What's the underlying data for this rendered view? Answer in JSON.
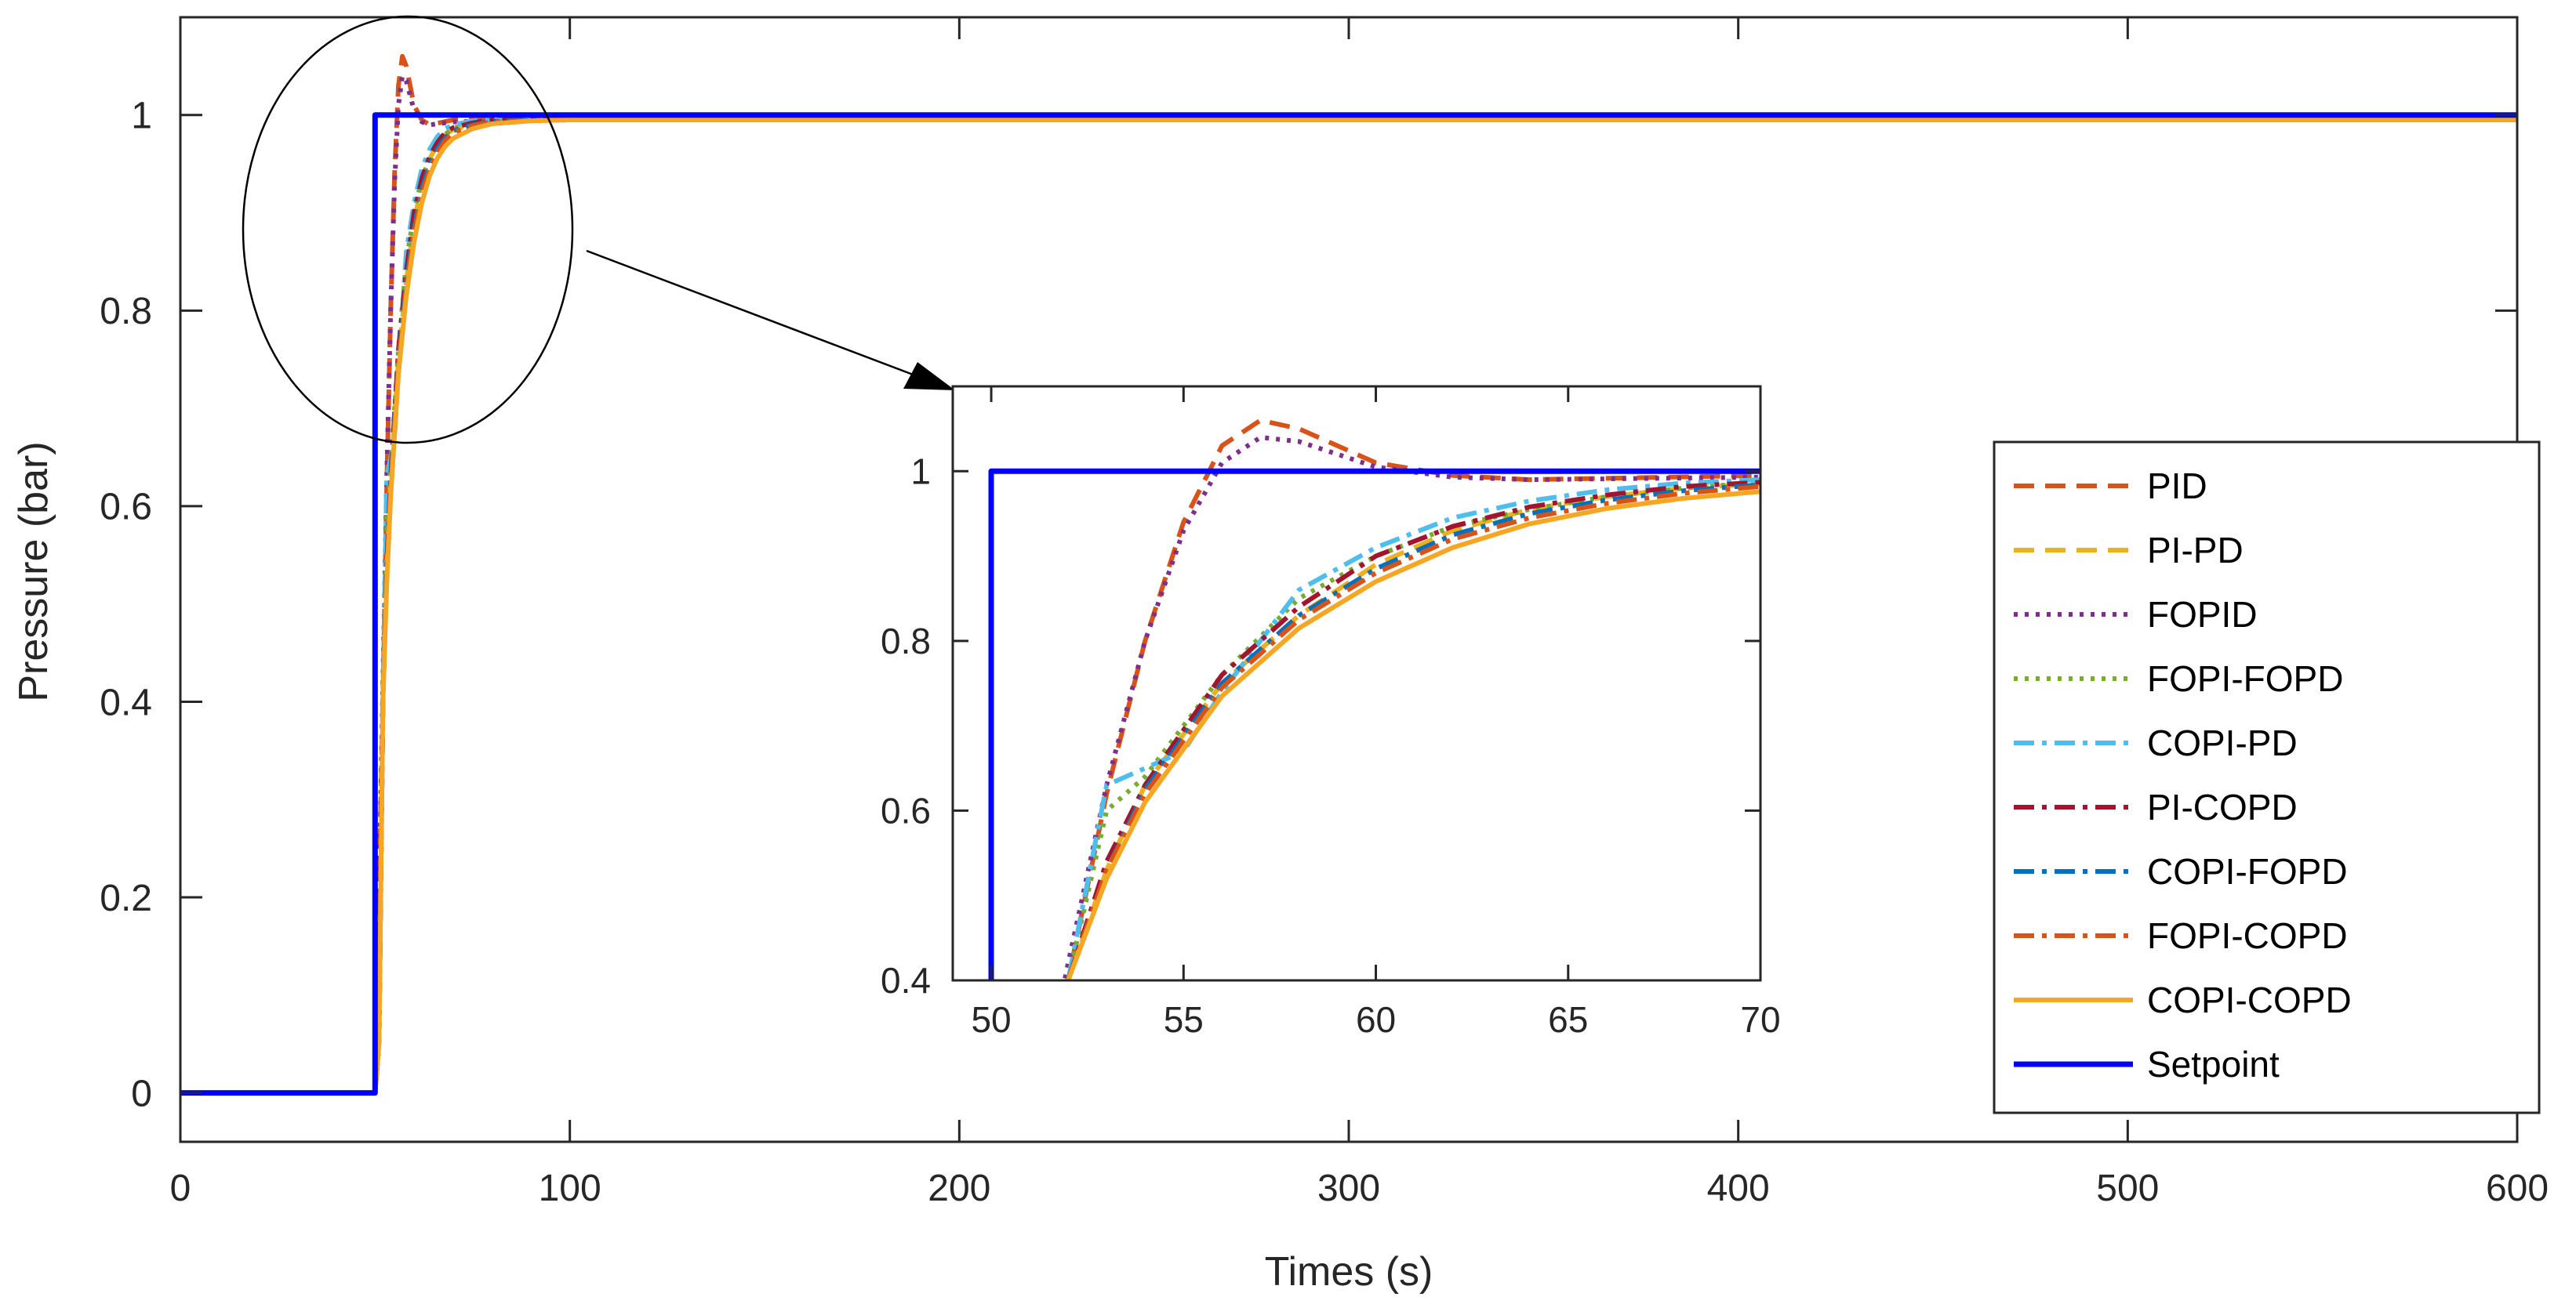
{
  "chart_data": [
    {
      "id": "main",
      "type": "line",
      "title": "",
      "xlabel": "Times (s)",
      "ylabel": "Pressure (bar)",
      "xlim": [
        0,
        600
      ],
      "ylim": [
        -0.05,
        1.1
      ],
      "xticks": [
        0,
        100,
        200,
        300,
        400,
        500,
        600
      ],
      "xtick_labels": [
        "0",
        "100",
        "200",
        "300",
        "400",
        "500",
        "600"
      ],
      "yticks": [
        0,
        0.2,
        0.4,
        0.6,
        0.8,
        1
      ],
      "ytick_labels": [
        "0",
        "0.2",
        "0.4",
        "0.6",
        "0.8",
        "1"
      ],
      "grid": false,
      "legend_position": "lower-right",
      "series": [
        {
          "name": "PID",
          "color": "#D95319",
          "dash": "dashed",
          "x": [
            0,
            50,
            51,
            52,
            53,
            54,
            55,
            56,
            57,
            58,
            59,
            60,
            62,
            64,
            70,
            80,
            100,
            600
          ],
          "y": [
            0,
            0,
            0.2,
            0.4,
            0.62,
            0.8,
            0.94,
            1.03,
            1.06,
            1.05,
            1.03,
            1.01,
            0.995,
            0.99,
            0.995,
            0.997,
            0.998,
            0.998
          ]
        },
        {
          "name": "PI-PD",
          "color": "#EDB120",
          "dash": "dashed",
          "x": [
            0,
            50,
            51,
            52,
            53,
            54,
            56,
            58,
            60,
            62,
            64,
            66,
            68,
            70,
            75,
            80,
            90,
            100,
            600
          ],
          "y": [
            0,
            0,
            0.05,
            0.4,
            0.53,
            0.63,
            0.75,
            0.83,
            0.89,
            0.93,
            0.955,
            0.97,
            0.98,
            0.985,
            0.99,
            0.993,
            0.995,
            0.996,
            0.997
          ]
        },
        {
          "name": "FOPID",
          "color": "#7E2F8E",
          "dash": "dotted",
          "x": [
            0,
            50,
            51,
            52,
            53,
            54,
            55,
            56,
            57,
            58,
            59,
            60,
            62,
            64,
            70,
            100,
            600
          ],
          "y": [
            0,
            0,
            0.2,
            0.42,
            0.63,
            0.8,
            0.93,
            1.01,
            1.04,
            1.035,
            1.02,
            1.005,
            0.993,
            0.99,
            0.993,
            0.995,
            0.995
          ]
        },
        {
          "name": "FOPI-FOPD",
          "color": "#77AC30",
          "dash": "dotted",
          "x": [
            0,
            50,
            51,
            52,
            53,
            54,
            56,
            58,
            60,
            62,
            64,
            66,
            68,
            70,
            75,
            80,
            90,
            100,
            600
          ],
          "y": [
            0,
            0,
            0.05,
            0.4,
            0.6,
            0.64,
            0.76,
            0.85,
            0.9,
            0.935,
            0.955,
            0.97,
            0.98,
            0.987,
            0.99,
            0.993,
            0.995,
            0.996,
            0.997
          ]
        },
        {
          "name": "COPI-PD",
          "color": "#4DBEEE",
          "dash": "dashdot",
          "x": [
            0,
            50,
            51,
            52,
            53,
            54,
            55,
            56,
            58,
            60,
            62,
            64,
            66,
            68,
            70,
            75,
            80,
            100,
            600
          ],
          "y": [
            0,
            0,
            0.05,
            0.4,
            0.63,
            0.65,
            0.67,
            0.74,
            0.86,
            0.91,
            0.945,
            0.965,
            0.978,
            0.986,
            0.99,
            0.994,
            0.996,
            0.998,
            0.998
          ]
        },
        {
          "name": "PI-COPD",
          "color": "#A2142F",
          "dash": "dashdot",
          "x": [
            0,
            50,
            51,
            52,
            53,
            54,
            56,
            58,
            60,
            62,
            64,
            66,
            68,
            70,
            75,
            80,
            100,
            600
          ],
          "y": [
            0,
            0,
            0.05,
            0.4,
            0.54,
            0.63,
            0.76,
            0.84,
            0.9,
            0.935,
            0.958,
            0.972,
            0.982,
            0.987,
            0.992,
            0.995,
            0.997,
            0.997
          ]
        },
        {
          "name": "COPI-FOPD",
          "color": "#0072BD",
          "dash": "dashdot",
          "x": [
            0,
            50,
            51,
            52,
            53,
            54,
            56,
            58,
            60,
            62,
            64,
            66,
            68,
            70,
            75,
            80,
            100,
            600
          ],
          "y": [
            0,
            0,
            0.05,
            0.4,
            0.53,
            0.625,
            0.75,
            0.83,
            0.885,
            0.925,
            0.95,
            0.966,
            0.977,
            0.984,
            0.99,
            0.994,
            0.996,
            0.996
          ]
        },
        {
          "name": "FOPI-COPD",
          "color": "#D95319",
          "dash": "dashdot",
          "x": [
            0,
            50,
            51,
            52,
            53,
            54,
            56,
            58,
            60,
            62,
            64,
            66,
            68,
            70,
            75,
            80,
            100,
            600
          ],
          "y": [
            0,
            0,
            0.05,
            0.4,
            0.53,
            0.62,
            0.745,
            0.825,
            0.88,
            0.92,
            0.945,
            0.962,
            0.974,
            0.982,
            0.989,
            0.993,
            0.996,
            0.996
          ]
        },
        {
          "name": "COPI-COPD",
          "color": "#F5A623",
          "dash": "solid",
          "x": [
            0,
            50,
            51,
            52,
            53,
            54,
            56,
            58,
            60,
            62,
            64,
            66,
            68,
            70,
            75,
            80,
            90,
            100,
            600
          ],
          "y": [
            0,
            0,
            0.05,
            0.4,
            0.52,
            0.61,
            0.735,
            0.815,
            0.87,
            0.91,
            0.938,
            0.956,
            0.968,
            0.976,
            0.986,
            0.991,
            0.994,
            0.995,
            0.995
          ]
        },
        {
          "name": "Setpoint",
          "color": "#0000FF",
          "dash": "solid",
          "x": [
            0,
            50,
            50,
            600
          ],
          "y": [
            0,
            0,
            1,
            1
          ]
        }
      ]
    },
    {
      "id": "inset",
      "type": "line",
      "title": "",
      "xlabel": "",
      "ylabel": "",
      "xlim": [
        49,
        70
      ],
      "ylim": [
        0.4,
        1.1
      ],
      "xticks": [
        50,
        55,
        60,
        65,
        70
      ],
      "xtick_labels": [
        "50",
        "55",
        "60",
        "65",
        "70"
      ],
      "yticks": [
        0.4,
        0.6,
        0.8,
        1
      ],
      "ytick_labels": [
        "0.4",
        "0.6",
        "0.8",
        "1"
      ],
      "grid": false,
      "note": "zoomed view of the transient around t = 50-70 s, shares series with main"
    }
  ]
}
